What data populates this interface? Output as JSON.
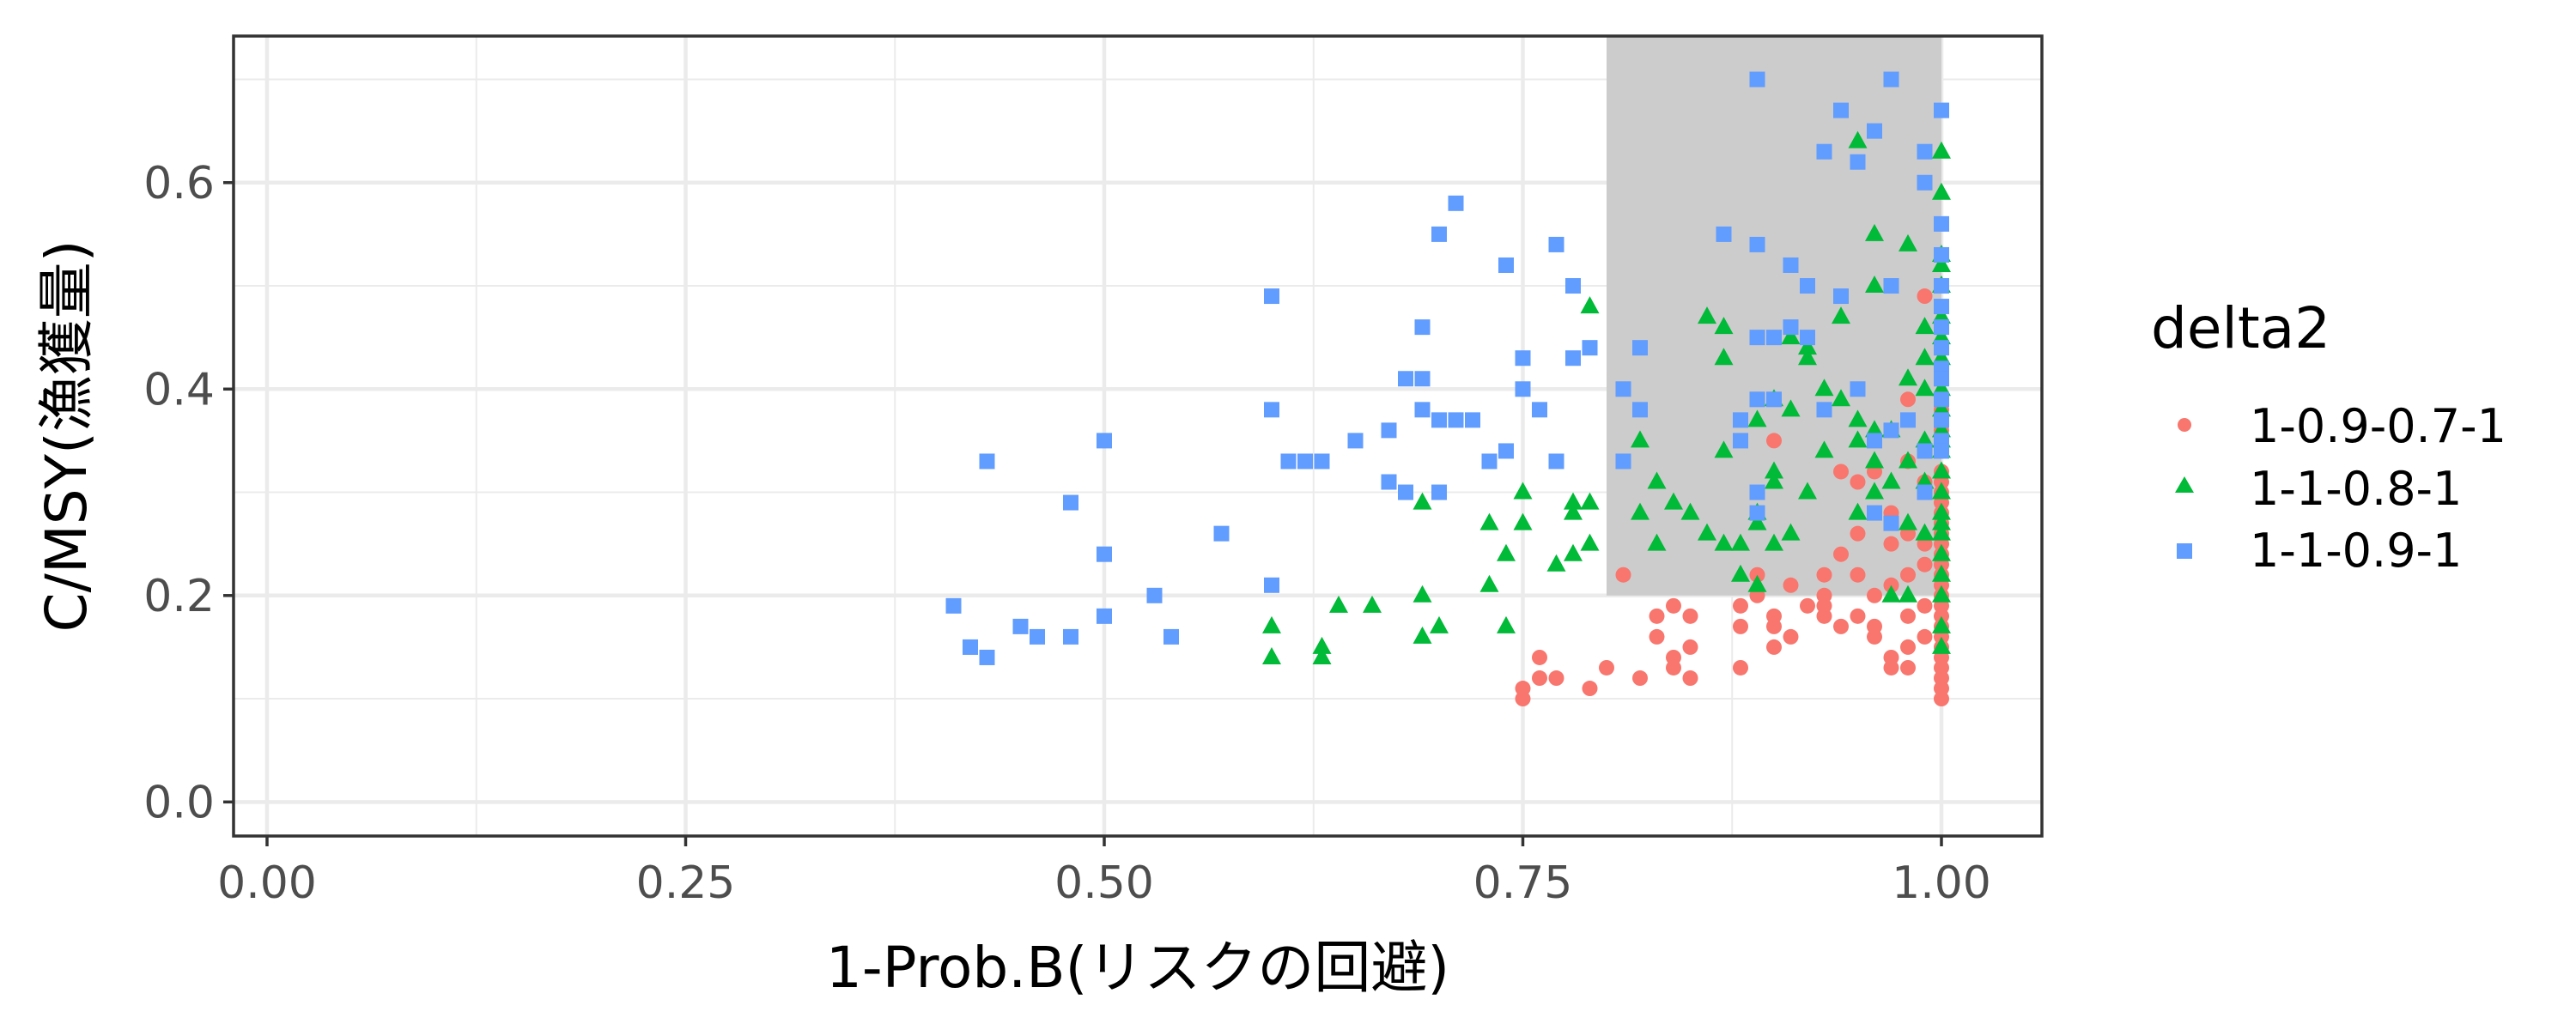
{
  "chart_data": {
    "type": "scatter",
    "xlabel": "1-Prob.B(リスクの回避)",
    "ylabel": "C/MSY(漁獲量)",
    "xlim": [
      -0.02,
      1.06
    ],
    "ylim": [
      -0.033,
      0.742
    ],
    "x_ticks": [
      0.0,
      0.25,
      0.5,
      0.75,
      1.0
    ],
    "x_tick_labels": [
      "0.00",
      "0.25",
      "0.50",
      "0.75",
      "1.00"
    ],
    "y_ticks": [
      0.0,
      0.2,
      0.4,
      0.6
    ],
    "y_tick_labels": [
      "0.0",
      "0.2",
      "0.4",
      "0.6"
    ],
    "grid": true,
    "legend": {
      "title": "delta2",
      "placement": "right"
    },
    "highlight_region": {
      "x": [
        0.8,
        1.0
      ],
      "y": [
        0.2,
        0.742
      ],
      "color": "#cccccc"
    },
    "series": [
      {
        "name": "1-0.9-0.7-1",
        "marker": "circle",
        "color": "#F8766D",
        "points": [
          [
            0.75,
            0.11
          ],
          [
            0.75,
            0.1
          ],
          [
            0.76,
            0.14
          ],
          [
            0.76,
            0.12
          ],
          [
            0.77,
            0.12
          ],
          [
            0.79,
            0.11
          ],
          [
            0.8,
            0.13
          ],
          [
            0.81,
            0.22
          ],
          [
            0.82,
            0.12
          ],
          [
            0.83,
            0.18
          ],
          [
            0.83,
            0.16
          ],
          [
            0.84,
            0.19
          ],
          [
            0.84,
            0.14
          ],
          [
            0.84,
            0.13
          ],
          [
            0.85,
            0.18
          ],
          [
            0.85,
            0.15
          ],
          [
            0.85,
            0.12
          ],
          [
            0.88,
            0.19
          ],
          [
            0.88,
            0.17
          ],
          [
            0.88,
            0.13
          ],
          [
            0.89,
            0.2
          ],
          [
            0.89,
            0.22
          ],
          [
            0.9,
            0.18
          ],
          [
            0.9,
            0.17
          ],
          [
            0.9,
            0.15
          ],
          [
            0.91,
            0.16
          ],
          [
            0.91,
            0.21
          ],
          [
            0.92,
            0.19
          ],
          [
            0.93,
            0.22
          ],
          [
            0.93,
            0.19
          ],
          [
            0.93,
            0.18
          ],
          [
            0.93,
            0.2
          ],
          [
            0.94,
            0.32
          ],
          [
            0.94,
            0.17
          ],
          [
            0.94,
            0.24
          ],
          [
            0.95,
            0.31
          ],
          [
            0.95,
            0.18
          ],
          [
            0.95,
            0.26
          ],
          [
            0.95,
            0.22
          ],
          [
            0.96,
            0.32
          ],
          [
            0.96,
            0.17
          ],
          [
            0.96,
            0.16
          ],
          [
            0.96,
            0.2
          ],
          [
            0.97,
            0.28
          ],
          [
            0.97,
            0.25
          ],
          [
            0.97,
            0.21
          ],
          [
            0.97,
            0.14
          ],
          [
            0.97,
            0.13
          ],
          [
            0.98,
            0.39
          ],
          [
            0.98,
            0.33
          ],
          [
            0.98,
            0.26
          ],
          [
            0.98,
            0.22
          ],
          [
            0.98,
            0.18
          ],
          [
            0.98,
            0.15
          ],
          [
            0.98,
            0.13
          ],
          [
            0.99,
            0.49
          ],
          [
            0.99,
            0.31
          ],
          [
            0.99,
            0.25
          ],
          [
            0.99,
            0.23
          ],
          [
            0.99,
            0.19
          ],
          [
            0.99,
            0.16
          ],
          [
            1.0,
            0.46
          ],
          [
            1.0,
            0.41
          ],
          [
            1.0,
            0.38
          ],
          [
            1.0,
            0.36
          ],
          [
            1.0,
            0.34
          ],
          [
            1.0,
            0.32
          ],
          [
            1.0,
            0.31
          ],
          [
            1.0,
            0.3
          ],
          [
            1.0,
            0.29
          ],
          [
            1.0,
            0.28
          ],
          [
            1.0,
            0.27
          ],
          [
            1.0,
            0.26
          ],
          [
            1.0,
            0.25
          ],
          [
            1.0,
            0.24
          ],
          [
            1.0,
            0.23
          ],
          [
            1.0,
            0.22
          ],
          [
            1.0,
            0.21
          ],
          [
            1.0,
            0.2
          ],
          [
            1.0,
            0.19
          ],
          [
            1.0,
            0.18
          ],
          [
            1.0,
            0.17
          ],
          [
            1.0,
            0.16
          ],
          [
            1.0,
            0.15
          ],
          [
            1.0,
            0.14
          ],
          [
            1.0,
            0.13
          ],
          [
            1.0,
            0.12
          ],
          [
            1.0,
            0.11
          ],
          [
            1.0,
            0.1
          ],
          [
            0.9,
            0.35
          ]
        ]
      },
      {
        "name": "1-1-0.8-1",
        "marker": "triangle",
        "color": "#00BA38",
        "points": [
          [
            0.6,
            0.17
          ],
          [
            0.6,
            0.14
          ],
          [
            0.63,
            0.15
          ],
          [
            0.63,
            0.14
          ],
          [
            0.64,
            0.19
          ],
          [
            0.66,
            0.19
          ],
          [
            0.69,
            0.29
          ],
          [
            0.69,
            0.2
          ],
          [
            0.69,
            0.16
          ],
          [
            0.7,
            0.17
          ],
          [
            0.73,
            0.27
          ],
          [
            0.73,
            0.21
          ],
          [
            0.74,
            0.24
          ],
          [
            0.74,
            0.17
          ],
          [
            0.75,
            0.3
          ],
          [
            0.75,
            0.27
          ],
          [
            0.77,
            0.23
          ],
          [
            0.78,
            0.29
          ],
          [
            0.78,
            0.28
          ],
          [
            0.78,
            0.24
          ],
          [
            0.79,
            0.48
          ],
          [
            0.79,
            0.29
          ],
          [
            0.79,
            0.25
          ],
          [
            0.82,
            0.35
          ],
          [
            0.82,
            0.28
          ],
          [
            0.83,
            0.31
          ],
          [
            0.83,
            0.25
          ],
          [
            0.84,
            0.29
          ],
          [
            0.85,
            0.28
          ],
          [
            0.86,
            0.47
          ],
          [
            0.86,
            0.26
          ],
          [
            0.87,
            0.46
          ],
          [
            0.87,
            0.43
          ],
          [
            0.87,
            0.34
          ],
          [
            0.87,
            0.25
          ],
          [
            0.88,
            0.25
          ],
          [
            0.88,
            0.22
          ],
          [
            0.89,
            0.37
          ],
          [
            0.89,
            0.28
          ],
          [
            0.89,
            0.27
          ],
          [
            0.89,
            0.21
          ],
          [
            0.9,
            0.39
          ],
          [
            0.9,
            0.32
          ],
          [
            0.9,
            0.31
          ],
          [
            0.9,
            0.25
          ],
          [
            0.91,
            0.45
          ],
          [
            0.91,
            0.38
          ],
          [
            0.91,
            0.26
          ],
          [
            0.92,
            0.44
          ],
          [
            0.92,
            0.43
          ],
          [
            0.92,
            0.3
          ],
          [
            0.93,
            0.4
          ],
          [
            0.93,
            0.34
          ],
          [
            0.94,
            0.47
          ],
          [
            0.94,
            0.39
          ],
          [
            0.95,
            0.64
          ],
          [
            0.95,
            0.37
          ],
          [
            0.95,
            0.35
          ],
          [
            0.95,
            0.28
          ],
          [
            0.96,
            0.55
          ],
          [
            0.96,
            0.5
          ],
          [
            0.96,
            0.36
          ],
          [
            0.96,
            0.33
          ],
          [
            0.96,
            0.3
          ],
          [
            0.97,
            0.36
          ],
          [
            0.97,
            0.31
          ],
          [
            0.97,
            0.2
          ],
          [
            0.98,
            0.54
          ],
          [
            0.98,
            0.41
          ],
          [
            0.98,
            0.33
          ],
          [
            0.98,
            0.27
          ],
          [
            0.98,
            0.2
          ],
          [
            0.99,
            0.46
          ],
          [
            0.99,
            0.43
          ],
          [
            0.99,
            0.4
          ],
          [
            0.99,
            0.35
          ],
          [
            0.99,
            0.31
          ],
          [
            0.99,
            0.26
          ],
          [
            1.0,
            0.63
          ],
          [
            1.0,
            0.59
          ],
          [
            1.0,
            0.53
          ],
          [
            1.0,
            0.52
          ],
          [
            1.0,
            0.5
          ],
          [
            1.0,
            0.47
          ],
          [
            1.0,
            0.45
          ],
          [
            1.0,
            0.43
          ],
          [
            1.0,
            0.4
          ],
          [
            1.0,
            0.38
          ],
          [
            1.0,
            0.36
          ],
          [
            1.0,
            0.35
          ],
          [
            1.0,
            0.34
          ],
          [
            1.0,
            0.32
          ],
          [
            1.0,
            0.3
          ],
          [
            1.0,
            0.28
          ],
          [
            1.0,
            0.27
          ],
          [
            1.0,
            0.26
          ],
          [
            1.0,
            0.24
          ],
          [
            1.0,
            0.22
          ],
          [
            1.0,
            0.2
          ],
          [
            1.0,
            0.17
          ],
          [
            1.0,
            0.15
          ]
        ]
      },
      {
        "name": "1-1-0.9-1",
        "marker": "square",
        "color": "#619CFF",
        "points": [
          [
            0.41,
            0.19
          ],
          [
            0.42,
            0.15
          ],
          [
            0.43,
            0.14
          ],
          [
            0.43,
            0.33
          ],
          [
            0.45,
            0.17
          ],
          [
            0.46,
            0.16
          ],
          [
            0.48,
            0.29
          ],
          [
            0.48,
            0.16
          ],
          [
            0.5,
            0.35
          ],
          [
            0.5,
            0.24
          ],
          [
            0.5,
            0.18
          ],
          [
            0.53,
            0.2
          ],
          [
            0.54,
            0.16
          ],
          [
            0.57,
            0.26
          ],
          [
            0.6,
            0.49
          ],
          [
            0.6,
            0.38
          ],
          [
            0.6,
            0.21
          ],
          [
            0.61,
            0.33
          ],
          [
            0.62,
            0.33
          ],
          [
            0.63,
            0.33
          ],
          [
            0.65,
            0.35
          ],
          [
            0.67,
            0.36
          ],
          [
            0.67,
            0.31
          ],
          [
            0.68,
            0.41
          ],
          [
            0.68,
            0.3
          ],
          [
            0.69,
            0.46
          ],
          [
            0.69,
            0.41
          ],
          [
            0.69,
            0.38
          ],
          [
            0.7,
            0.55
          ],
          [
            0.7,
            0.37
          ],
          [
            0.7,
            0.3
          ],
          [
            0.71,
            0.58
          ],
          [
            0.71,
            0.37
          ],
          [
            0.72,
            0.37
          ],
          [
            0.73,
            0.33
          ],
          [
            0.74,
            0.52
          ],
          [
            0.74,
            0.34
          ],
          [
            0.75,
            0.43
          ],
          [
            0.75,
            0.4
          ],
          [
            0.76,
            0.38
          ],
          [
            0.77,
            0.54
          ],
          [
            0.77,
            0.33
          ],
          [
            0.78,
            0.5
          ],
          [
            0.78,
            0.43
          ],
          [
            0.79,
            0.44
          ],
          [
            0.81,
            0.4
          ],
          [
            0.81,
            0.33
          ],
          [
            0.82,
            0.44
          ],
          [
            0.82,
            0.38
          ],
          [
            0.87,
            0.55
          ],
          [
            0.88,
            0.37
          ],
          [
            0.88,
            0.35
          ],
          [
            0.89,
            0.7
          ],
          [
            0.89,
            0.54
          ],
          [
            0.89,
            0.45
          ],
          [
            0.89,
            0.39
          ],
          [
            0.89,
            0.3
          ],
          [
            0.89,
            0.28
          ],
          [
            0.9,
            0.45
          ],
          [
            0.9,
            0.39
          ],
          [
            0.91,
            0.52
          ],
          [
            0.91,
            0.46
          ],
          [
            0.92,
            0.5
          ],
          [
            0.92,
            0.45
          ],
          [
            0.93,
            0.63
          ],
          [
            0.93,
            0.38
          ],
          [
            0.94,
            0.67
          ],
          [
            0.94,
            0.49
          ],
          [
            0.95,
            0.62
          ],
          [
            0.95,
            0.4
          ],
          [
            0.96,
            0.65
          ],
          [
            0.96,
            0.35
          ],
          [
            0.96,
            0.28
          ],
          [
            0.97,
            0.7
          ],
          [
            0.97,
            0.5
          ],
          [
            0.97,
            0.36
          ],
          [
            0.97,
            0.27
          ],
          [
            0.98,
            0.37
          ],
          [
            0.99,
            0.63
          ],
          [
            0.99,
            0.6
          ],
          [
            0.99,
            0.34
          ],
          [
            0.99,
            0.3
          ],
          [
            1.0,
            0.67
          ],
          [
            1.0,
            0.56
          ],
          [
            1.0,
            0.53
          ],
          [
            1.0,
            0.5
          ],
          [
            1.0,
            0.48
          ],
          [
            1.0,
            0.46
          ],
          [
            1.0,
            0.44
          ],
          [
            1.0,
            0.42
          ],
          [
            1.0,
            0.41
          ],
          [
            1.0,
            0.39
          ],
          [
            1.0,
            0.37
          ],
          [
            1.0,
            0.35
          ],
          [
            1.0,
            0.34
          ]
        ]
      }
    ]
  }
}
